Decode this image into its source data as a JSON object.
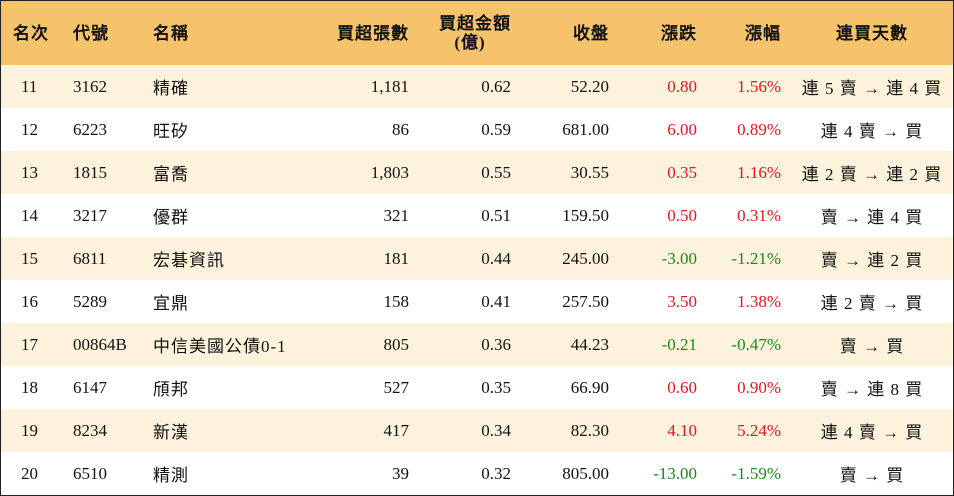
{
  "colors": {
    "header_bg": "#f5c36b",
    "row_alt_bg": "#fdf2dc",
    "up": "#e8141c",
    "down": "#1a8a1a"
  },
  "headers": {
    "rank": "名次",
    "code": "代號",
    "name": "名稱",
    "net_buy_lots": "買超張數",
    "net_buy_amount_line1": "買超金額",
    "net_buy_amount_line2": "(億)",
    "close": "收盤",
    "change": "漲跌",
    "change_pct": "漲幅",
    "streak": "連買天數"
  },
  "rows": [
    {
      "rank": "11",
      "code": "3162",
      "name": "精確",
      "lots": "1,181",
      "amount": "0.62",
      "close": "52.20",
      "change": "0.80",
      "pct": "1.56%",
      "dir": "up",
      "streak": "連 5 賣 → 連 4 買"
    },
    {
      "rank": "12",
      "code": "6223",
      "name": "旺矽",
      "lots": "86",
      "amount": "0.59",
      "close": "681.00",
      "change": "6.00",
      "pct": "0.89%",
      "dir": "up",
      "streak": "連 4 賣 → 買"
    },
    {
      "rank": "13",
      "code": "1815",
      "name": "富喬",
      "lots": "1,803",
      "amount": "0.55",
      "close": "30.55",
      "change": "0.35",
      "pct": "1.16%",
      "dir": "up",
      "streak": "連 2 賣 → 連 2 買"
    },
    {
      "rank": "14",
      "code": "3217",
      "name": "優群",
      "lots": "321",
      "amount": "0.51",
      "close": "159.50",
      "change": "0.50",
      "pct": "0.31%",
      "dir": "up",
      "streak": "賣 → 連 4 買"
    },
    {
      "rank": "15",
      "code": "6811",
      "name": "宏碁資訊",
      "lots": "181",
      "amount": "0.44",
      "close": "245.00",
      "change": "-3.00",
      "pct": "-1.21%",
      "dir": "down",
      "streak": "賣 → 連 2 買"
    },
    {
      "rank": "16",
      "code": "5289",
      "name": "宜鼎",
      "lots": "158",
      "amount": "0.41",
      "close": "257.50",
      "change": "3.50",
      "pct": "1.38%",
      "dir": "up",
      "streak": "連 2 賣 → 買"
    },
    {
      "rank": "17",
      "code": "00864B",
      "name": "中信美國公債0-1",
      "lots": "805",
      "amount": "0.36",
      "close": "44.23",
      "change": "-0.21",
      "pct": "-0.47%",
      "dir": "down",
      "streak": "賣 → 買"
    },
    {
      "rank": "18",
      "code": "6147",
      "name": "頎邦",
      "lots": "527",
      "amount": "0.35",
      "close": "66.90",
      "change": "0.60",
      "pct": "0.90%",
      "dir": "up",
      "streak": "賣 → 連 8 買"
    },
    {
      "rank": "19",
      "code": "8234",
      "name": "新漢",
      "lots": "417",
      "amount": "0.34",
      "close": "82.30",
      "change": "4.10",
      "pct": "5.24%",
      "dir": "up",
      "streak": "連 4 賣 → 買"
    },
    {
      "rank": "20",
      "code": "6510",
      "name": "精測",
      "lots": "39",
      "amount": "0.32",
      "close": "805.00",
      "change": "-13.00",
      "pct": "-1.59%",
      "dir": "down",
      "streak": "賣 → 買"
    }
  ]
}
